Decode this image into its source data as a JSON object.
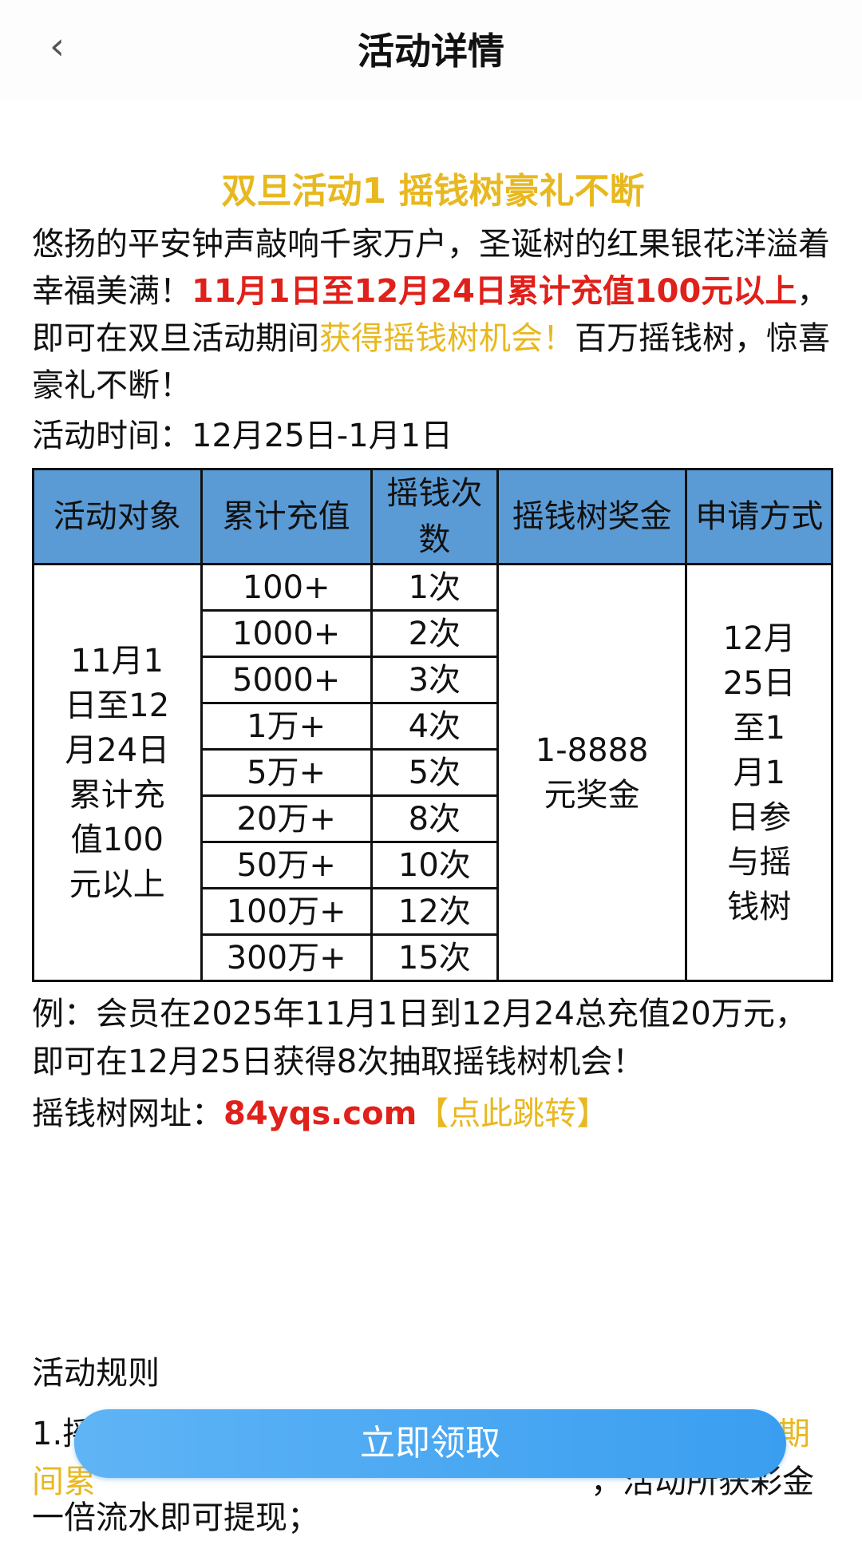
{
  "header": {
    "title": "活动详情",
    "back_icon": "chevron-left-icon"
  },
  "heading": "双旦活动1 摇钱树豪礼不断",
  "intro": {
    "p1": "悠扬的平安钟声敲响千家万户，圣诞树的红果银花洋溢着幸福美满！",
    "p2": "11月1日至12月24日累计充值100元以上",
    "p3": "，即可在双旦活动期间",
    "p4": "获得摇钱树机会！",
    "p5": "百万摇钱树，惊喜豪礼不断！"
  },
  "time": "活动时间：12月25日-1月1日",
  "table": {
    "headers": [
      "活动对象",
      "累计充值",
      "摇钱次数",
      "摇钱树奖金",
      "申请方式"
    ],
    "target": "11月1日至12月24日累计充值100元以上",
    "rows": [
      [
        "100+",
        "1次"
      ],
      [
        "1000+",
        "2次"
      ],
      [
        "5000+",
        "3次"
      ],
      [
        "1万+",
        "4次"
      ],
      [
        "5万+",
        "5次"
      ],
      [
        "20万+",
        "8次"
      ],
      [
        "50万+",
        "10次"
      ],
      [
        "100万+",
        "12次"
      ],
      [
        "300万+",
        "15次"
      ]
    ],
    "prize": "1-8888元奖金",
    "method": "12月25日至1月1日参与摇钱树"
  },
  "example": "例：会员在2025年11月1日到12月24总充值20万元，即可在12月25日获得8次抽取摇钱树机会！",
  "url": {
    "label": "摇钱树网址：",
    "domain": "84yqs.com",
    "link": "【点此跳转】"
  },
  "rules": {
    "title": "活动规则",
    "l1a": "1.摇钱树活动需在",
    "l1b": "期",
    "l2a": "间累",
    "l2b": "，活动所获彩金",
    "l3": "一倍流水即可提现；"
  },
  "button": "立即领取",
  "colors": {
    "accent": "#e8b820",
    "red": "#e0201a",
    "table_header": "#5b9bd5",
    "button": "#3a9ef0"
  }
}
